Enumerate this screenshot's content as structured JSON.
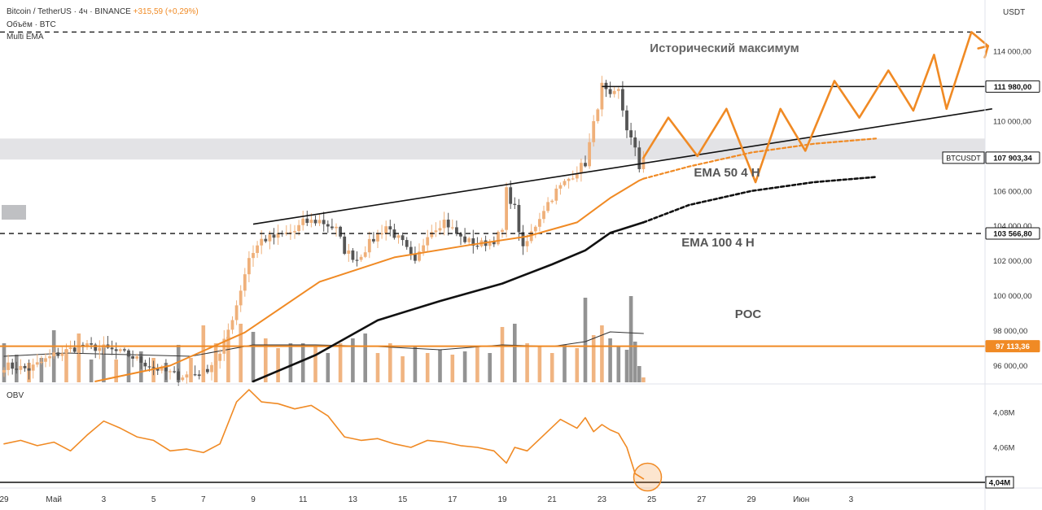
{
  "header": {
    "title": "Bitcoin / TetherUS · 4ч · BINANCE",
    "change": "+315,59 (+0,29%)",
    "line2": "Объём · BTC",
    "line3": "Multi EMA"
  },
  "currency_label": "USDT",
  "colors": {
    "up": "#efb07a",
    "down": "#5a5a5a",
    "ema50": "#f08a24",
    "ema100": "#111111",
    "poc": "#f08a24",
    "obv": "#f08a24",
    "projection": "#f08a24"
  },
  "annotations": {
    "ath": "Исторический максимум",
    "ema50": "EMA 50 4 H",
    "ema100": "EMA 100 4 H",
    "poc": "POC"
  },
  "chart_data": [
    {
      "type": "candlestick",
      "symbol": "BTCUSDT",
      "y_axis": {
        "ticks": [
          {
            "value": 96000,
            "label": "96 000,00"
          },
          {
            "value": 98000,
            "label": "98 000,00"
          },
          {
            "value": 100000,
            "label": "100 000,00"
          },
          {
            "value": 102000,
            "label": "102 000,00"
          },
          {
            "value": 104000,
            "label": "104 000,00"
          },
          {
            "value": 106000,
            "label": "106 000,00"
          },
          {
            "value": 110000,
            "label": "110 000,00"
          },
          {
            "value": 114000,
            "label": "114 000,00"
          }
        ]
      },
      "x_axis": {
        "ticks": [
          {
            "i": 0,
            "label": "29"
          },
          {
            "i": 12,
            "label": "Май"
          },
          {
            "i": 24,
            "label": "3"
          },
          {
            "i": 36,
            "label": "5"
          },
          {
            "i": 48,
            "label": "7"
          },
          {
            "i": 60,
            "label": "9"
          },
          {
            "i": 72,
            "label": "11"
          },
          {
            "i": 84,
            "label": "13"
          },
          {
            "i": 96,
            "label": "15"
          },
          {
            "i": 108,
            "label": "17"
          },
          {
            "i": 120,
            "label": "19"
          },
          {
            "i": 132,
            "label": "21"
          },
          {
            "i": 144,
            "label": "23"
          },
          {
            "i": 156,
            "label": "25"
          },
          {
            "i": 168,
            "label": "27"
          },
          {
            "i": 180,
            "label": "29"
          },
          {
            "i": 192,
            "label": "Июн"
          },
          {
            "i": 204,
            "label": "3"
          }
        ]
      },
      "levels": [
        {
          "name": "all-time-high",
          "value": 111980,
          "label": "111 980,00",
          "style": "solid"
        },
        {
          "name": "last-price",
          "value": 107903.34,
          "label": "107 903,34",
          "tag": "BTCUSDT",
          "style": "solid"
        },
        {
          "name": "support",
          "value": 103566.8,
          "label": "103 566,80",
          "style": "dashed"
        },
        {
          "name": "poc",
          "value": 97113.36,
          "label": "97 113,36",
          "style": "solid"
        },
        {
          "name": "top-target",
          "value": 115100,
          "style": "dashed"
        }
      ],
      "zone": {
        "low": 107800,
        "high": 109000
      },
      "anchors": [
        [
          0,
          96000
        ],
        [
          6,
          95800
        ],
        [
          12,
          96600
        ],
        [
          18,
          97100
        ],
        [
          24,
          97000
        ],
        [
          30,
          96600
        ],
        [
          36,
          95900
        ],
        [
          42,
          95400
        ],
        [
          48,
          95600
        ],
        [
          52,
          96600
        ],
        [
          56,
          99500
        ],
        [
          59,
          102200
        ],
        [
          62,
          103200
        ],
        [
          66,
          103400
        ],
        [
          70,
          103700
        ],
        [
          72,
          104200
        ],
        [
          76,
          104300
        ],
        [
          80,
          103800
        ],
        [
          82,
          102600
        ],
        [
          85,
          102100
        ],
        [
          88,
          103000
        ],
        [
          92,
          104000
        ],
        [
          96,
          103000
        ],
        [
          99,
          101800
        ],
        [
          102,
          103600
        ],
        [
          106,
          104300
        ],
        [
          110,
          103300
        ],
        [
          114,
          102900
        ],
        [
          118,
          103200
        ],
        [
          120,
          103700
        ],
        [
          121,
          106000
        ],
        [
          123,
          105000
        ],
        [
          125,
          102600
        ],
        [
          127,
          103600
        ],
        [
          130,
          105000
        ],
        [
          133,
          106000
        ],
        [
          136,
          106700
        ],
        [
          138,
          107200
        ],
        [
          140,
          107600
        ],
        [
          142,
          109800
        ],
        [
          144,
          112000
        ],
        [
          146,
          111300
        ],
        [
          148,
          111700
        ],
        [
          150,
          109600
        ],
        [
          152,
          108300
        ],
        [
          153,
          107300
        ],
        [
          154,
          107900
        ]
      ],
      "series": [
        {
          "name": "EMA 50 4 H",
          "points": [
            [
              22,
              95100
            ],
            [
              40,
              96000
            ],
            [
              58,
              97900
            ],
            [
              76,
              100800
            ],
            [
              94,
              102200
            ],
            [
              112,
              102900
            ],
            [
              126,
              103400
            ],
            [
              138,
              104200
            ],
            [
              146,
              105600
            ],
            [
              153,
              106600
            ],
            [
              154,
              106700
            ]
          ]
        },
        {
          "name": "EMA 100 4 H",
          "points": [
            [
              60,
              95100
            ],
            [
              75,
              96600
            ],
            [
              90,
              98600
            ],
            [
              105,
              99700
            ],
            [
              120,
              100700
            ],
            [
              132,
              101800
            ],
            [
              140,
              102600
            ],
            [
              146,
              103600
            ],
            [
              154,
              104200
            ]
          ]
        }
      ],
      "projections": [
        {
          "name": "ema50-projection",
          "style": "dashed",
          "points": [
            [
              154,
              106700
            ],
            [
              165,
              107400
            ],
            [
              180,
              108200
            ],
            [
              195,
              108700
            ],
            [
              210,
              109000
            ]
          ]
        },
        {
          "name": "ema100-projection",
          "style": "dashed",
          "points": [
            [
              154,
              104200
            ],
            [
              165,
              105200
            ],
            [
              180,
              106000
            ],
            [
              195,
              106500
            ],
            [
              210,
              106800
            ]
          ]
        },
        {
          "name": "zigzag-path",
          "style": "solid",
          "points": [
            [
              154,
              107900
            ],
            [
              160,
              110200
            ],
            [
              167,
              108000
            ],
            [
              174,
              110700
            ],
            [
              181,
              106500
            ],
            [
              187,
              110700
            ],
            [
              193,
              108300
            ],
            [
              200,
              112300
            ],
            [
              206,
              110200
            ],
            [
              213,
              112900
            ],
            [
              219,
              110600
            ],
            [
              224,
              113800
            ],
            [
              227,
              110700
            ],
            [
              233,
              115100
            ],
            [
              237,
              114300
            ]
          ]
        }
      ],
      "trendline": {
        "from": [
          60,
          104100
        ],
        "to": [
          238,
          110700
        ]
      },
      "ath_line": {
        "from": [
          144,
          111980
        ],
        "to": [
          240,
          111980
        ]
      }
    },
    {
      "type": "bar",
      "name": "volume",
      "bars": [
        [
          0,
          2.4,
          "down"
        ],
        [
          3,
          1.7,
          "down"
        ],
        [
          6,
          1.2,
          "up"
        ],
        [
          9,
          1.5,
          "down"
        ],
        [
          12,
          3.2,
          "down"
        ],
        [
          15,
          2.0,
          "up"
        ],
        [
          18,
          3.0,
          "up"
        ],
        [
          21,
          1.4,
          "down"
        ],
        [
          24,
          2.2,
          "down"
        ],
        [
          27,
          1.4,
          "up"
        ],
        [
          30,
          1.8,
          "down"
        ],
        [
          33,
          1.9,
          "down"
        ],
        [
          36,
          1.5,
          "up"
        ],
        [
          39,
          1.2,
          "down"
        ],
        [
          42,
          2.3,
          "down"
        ],
        [
          45,
          1.5,
          "up"
        ],
        [
          48,
          3.5,
          "up"
        ],
        [
          51,
          2.4,
          "up"
        ],
        [
          54,
          2.8,
          "up"
        ],
        [
          57,
          3.6,
          "up"
        ],
        [
          60,
          3.1,
          "down"
        ],
        [
          63,
          2.7,
          "up"
        ],
        [
          66,
          2.1,
          "up"
        ],
        [
          69,
          2.4,
          "down"
        ],
        [
          72,
          2.4,
          "down"
        ],
        [
          75,
          2.2,
          "up"
        ],
        [
          78,
          1.8,
          "down"
        ],
        [
          81,
          2.4,
          "up"
        ],
        [
          84,
          2.7,
          "down"
        ],
        [
          87,
          3.0,
          "down"
        ],
        [
          90,
          1.8,
          "up"
        ],
        [
          93,
          2.4,
          "up"
        ],
        [
          96,
          1.6,
          "up"
        ],
        [
          99,
          2.2,
          "down"
        ],
        [
          102,
          1.8,
          "up"
        ],
        [
          105,
          2.0,
          "down"
        ],
        [
          108,
          1.7,
          "up"
        ],
        [
          111,
          1.9,
          "down"
        ],
        [
          114,
          2.2,
          "up"
        ],
        [
          117,
          1.8,
          "down"
        ],
        [
          120,
          3.4,
          "up"
        ],
        [
          123,
          3.6,
          "down"
        ],
        [
          126,
          2.4,
          "up"
        ],
        [
          129,
          2.2,
          "up"
        ],
        [
          132,
          1.8,
          "up"
        ],
        [
          135,
          2.3,
          "down"
        ],
        [
          138,
          2.1,
          "up"
        ],
        [
          140,
          5.2,
          "down"
        ],
        [
          142,
          2.9,
          "up"
        ],
        [
          144,
          3.5,
          "up"
        ],
        [
          146,
          2.7,
          "down"
        ],
        [
          148,
          2.2,
          "down"
        ],
        [
          150,
          2.0,
          "down"
        ],
        [
          151,
          5.3,
          "down"
        ],
        [
          152,
          2.5,
          "down"
        ],
        [
          153,
          1.0,
          "down"
        ],
        [
          154,
          0.3,
          "up"
        ]
      ],
      "ma": [
        [
          0,
          1.6
        ],
        [
          15,
          1.8
        ],
        [
          30,
          1.7
        ],
        [
          45,
          1.6
        ],
        [
          60,
          2.3
        ],
        [
          75,
          2.3
        ],
        [
          90,
          2.2
        ],
        [
          105,
          2.0
        ],
        [
          120,
          2.3
        ],
        [
          132,
          2.2
        ],
        [
          140,
          2.5
        ],
        [
          146,
          3.1
        ],
        [
          154,
          3.0
        ]
      ]
    },
    {
      "type": "line",
      "name": "OBV",
      "title": "OBV",
      "y_axis": {
        "ticks": [
          {
            "value": 4.06,
            "label": "4,06M"
          },
          {
            "value": 4.08,
            "label": "4,08M"
          }
        ]
      },
      "level": {
        "value": 4.04,
        "label": "4,04M"
      },
      "points": [
        [
          0,
          4.062
        ],
        [
          4,
          4.064
        ],
        [
          8,
          4.061
        ],
        [
          12,
          4.063
        ],
        [
          16,
          4.058
        ],
        [
          20,
          4.067
        ],
        [
          24,
          4.075
        ],
        [
          28,
          4.071
        ],
        [
          32,
          4.066
        ],
        [
          36,
          4.064
        ],
        [
          40,
          4.058
        ],
        [
          44,
          4.059
        ],
        [
          48,
          4.057
        ],
        [
          52,
          4.062
        ],
        [
          56,
          4.086
        ],
        [
          59,
          4.093
        ],
        [
          62,
          4.086
        ],
        [
          66,
          4.085
        ],
        [
          70,
          4.082
        ],
        [
          74,
          4.084
        ],
        [
          78,
          4.078
        ],
        [
          82,
          4.066
        ],
        [
          86,
          4.064
        ],
        [
          90,
          4.065
        ],
        [
          94,
          4.062
        ],
        [
          98,
          4.06
        ],
        [
          102,
          4.064
        ],
        [
          106,
          4.063
        ],
        [
          110,
          4.061
        ],
        [
          114,
          4.06
        ],
        [
          118,
          4.058
        ],
        [
          121,
          4.051
        ],
        [
          123,
          4.06
        ],
        [
          126,
          4.058
        ],
        [
          130,
          4.067
        ],
        [
          134,
          4.076
        ],
        [
          138,
          4.071
        ],
        [
          140,
          4.077
        ],
        [
          142,
          4.069
        ],
        [
          144,
          4.073
        ],
        [
          146,
          4.07
        ],
        [
          148,
          4.068
        ],
        [
          150,
          4.06
        ],
        [
          152,
          4.045
        ],
        [
          154,
          4.042
        ]
      ],
      "highlight": {
        "i": 155,
        "value": 4.043
      }
    }
  ]
}
